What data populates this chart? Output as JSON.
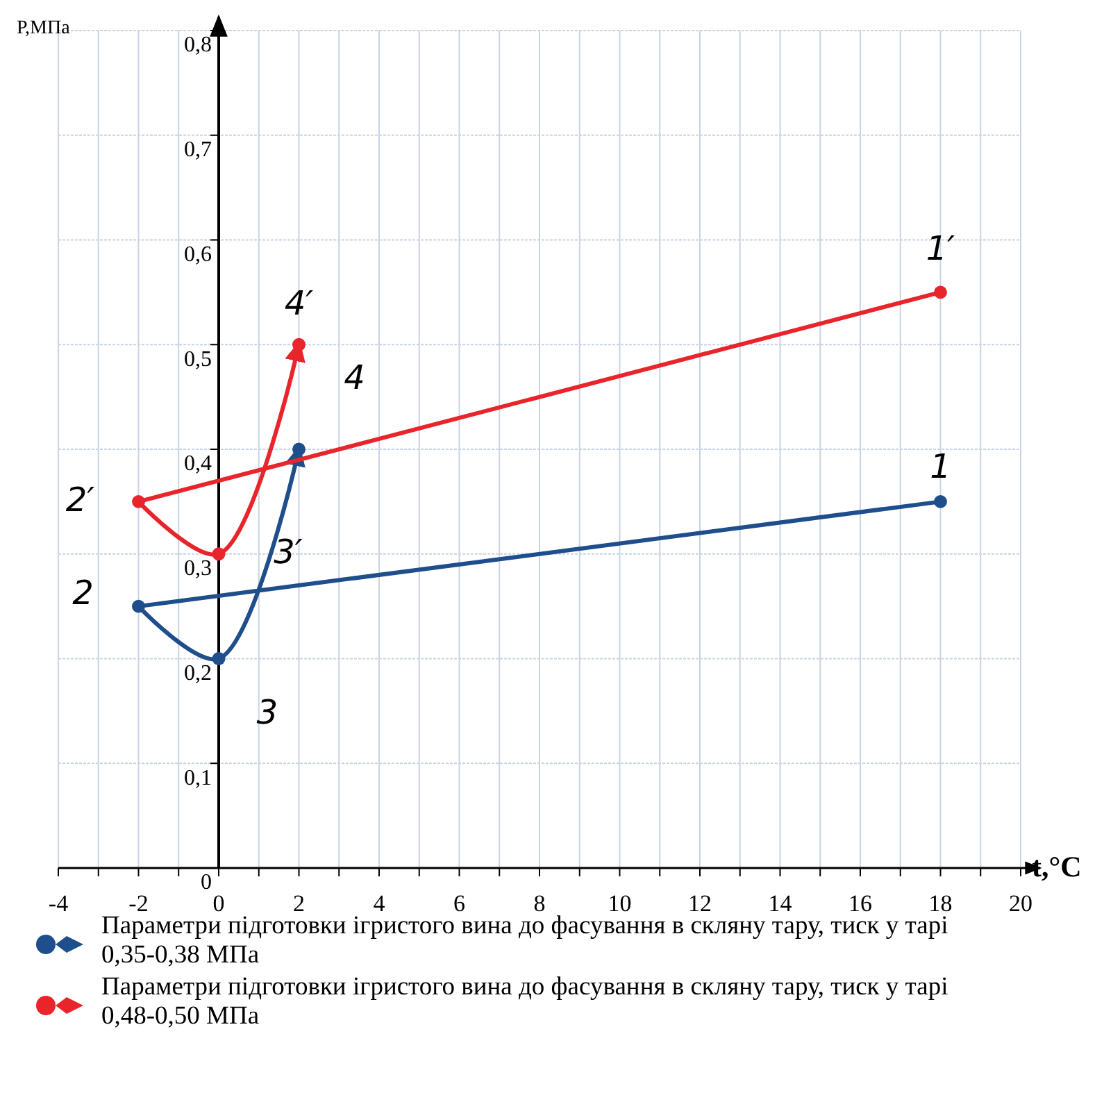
{
  "chart_data": {
    "type": "line",
    "xlabel": "t,°C",
    "ylabel": "Р,МПа",
    "xlim": [
      -4,
      20
    ],
    "ylim": [
      0,
      0.8
    ],
    "xticks": [
      -4,
      {
        "value": -3,
        "label": null
      },
      -2,
      {
        "value": -1,
        "label": null
      },
      0,
      {
        "value": 1,
        "label": null
      },
      2,
      {
        "value": 3,
        "label": null
      },
      4,
      {
        "value": 5,
        "label": null
      },
      6,
      {
        "value": 7,
        "label": null
      },
      8,
      {
        "value": 9,
        "label": null
      },
      10,
      {
        "value": 11,
        "label": null
      },
      12,
      {
        "value": 13,
        "label": null
      },
      14,
      {
        "value": 15,
        "label": null
      },
      16,
      {
        "value": 17,
        "label": null
      },
      18,
      {
        "value": 19,
        "label": null
      },
      20
    ],
    "yticks": [
      {
        "value": 0,
        "label": "0"
      },
      {
        "value": 0.1,
        "label": "0,1"
      },
      {
        "value": 0.2,
        "label": "0,2"
      },
      {
        "value": 0.3,
        "label": "0,3"
      },
      {
        "value": 0.4,
        "label": "0,4"
      },
      {
        "value": 0.5,
        "label": "0,5"
      },
      {
        "value": 0.6,
        "label": "0,6"
      },
      {
        "value": 0.7,
        "label": "0,7"
      },
      {
        "value": 0.8,
        "label": "0,8"
      }
    ],
    "grid": true,
    "legend": "bottom",
    "marker": "circle",
    "line_style": "solid",
    "series": [
      {
        "name": "Параметри підготовки ігристого вина до фасування в скляну тару, тиск у тарі 0,35-0,38 МПа",
        "color": "#1f4e8c",
        "x": [
          18,
          -2,
          0,
          2
        ],
        "values": [
          0.35,
          0.25,
          0.2,
          0.4
        ]
      },
      {
        "name": "Параметри підготовки ігристого вина до фасування в скляну тару, тиск у тарі 0,48-0,50 МПа",
        "color": "#e8252a",
        "x": [
          18,
          -2,
          0,
          2
        ],
        "values": [
          0.55,
          0.35,
          0.3,
          0.5
        ]
      }
    ],
    "annotations": [
      {
        "text": "1",
        "x": 18,
        "y": 0.35
      },
      {
        "text": "2",
        "x": -2,
        "y": 0.25
      },
      {
        "text": "3",
        "x": 0,
        "y": 0.2
      },
      {
        "text": "4",
        "x": 2,
        "y": 0.4
      },
      {
        "text": "1′",
        "x": 18,
        "y": 0.55
      },
      {
        "text": "2′",
        "x": -2,
        "y": 0.35
      },
      {
        "text": "3′",
        "x": 0,
        "y": 0.3
      },
      {
        "text": "4′",
        "x": 2,
        "y": 0.5
      }
    ]
  }
}
